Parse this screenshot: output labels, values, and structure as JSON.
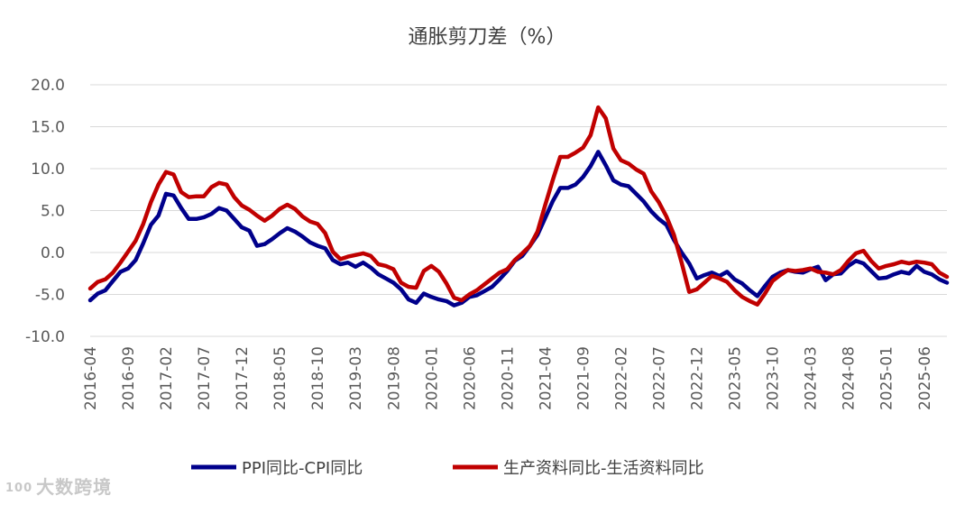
{
  "chart_data": {
    "type": "line",
    "title": "通胀剪刀差（%）",
    "xlabel": "",
    "ylabel": "",
    "ylim": [
      -10,
      20
    ],
    "yticks": [
      20,
      15,
      10,
      5,
      0,
      -5,
      -10
    ],
    "ytick_labels": [
      "20.0",
      "15.0",
      "10.0",
      "5.0",
      "0.0",
      "-5.0",
      "-10.0"
    ],
    "grid": true,
    "legend_position": "bottom",
    "start": "2016-04",
    "end": "2025-06",
    "xtick_labels": [
      "2016-04",
      "2016-09",
      "2017-02",
      "2017-07",
      "2017-12",
      "2018-05",
      "2018-10",
      "2019-03",
      "2019-08",
      "2020-01",
      "2020-06",
      "2020-11",
      "2021-04",
      "2021-09",
      "2022-02",
      "2022-07",
      "2022-12",
      "2023-05",
      "2023-10",
      "2024-03",
      "2024-08",
      "2025-01",
      "2025-06"
    ],
    "series": [
      {
        "name": "PPI同比-CPI同比",
        "color": "#00008B",
        "values": [
          -5.7,
          -4.9,
          -4.5,
          -3.4,
          -2.3,
          -1.9,
          -0.9,
          1.1,
          3.3,
          4.4,
          7.0,
          6.8,
          5.3,
          4.0,
          4.0,
          4.2,
          4.6,
          5.3,
          5.0,
          4.0,
          3.0,
          2.6,
          0.8,
          1.0,
          1.6,
          2.3,
          2.9,
          2.5,
          1.9,
          1.2,
          0.8,
          0.5,
          -0.9,
          -1.4,
          -1.2,
          -1.7,
          -1.2,
          -1.8,
          -2.6,
          -3.1,
          -3.6,
          -4.4,
          -5.6,
          -6.0,
          -4.9,
          -5.3,
          -5.6,
          -5.8,
          -6.3,
          -6.0,
          -5.3,
          -5.1,
          -4.6,
          -4.1,
          -3.2,
          -2.2,
          -1.0,
          -0.4,
          0.8,
          2.1,
          4.1,
          6.1,
          7.7,
          7.7,
          8.1,
          9.0,
          10.3,
          12.0,
          10.4,
          8.6,
          8.1,
          7.9,
          7.0,
          6.1,
          4.9,
          4.0,
          3.3,
          1.5,
          0.0,
          -1.3,
          -3.1,
          -2.7,
          -2.4,
          -2.8,
          -2.3,
          -3.2,
          -3.7,
          -4.5,
          -5.2,
          -4.0,
          -2.9,
          -2.4,
          -2.1,
          -2.3,
          -2.4,
          -2.0,
          -1.7,
          -3.3,
          -2.6,
          -2.5,
          -1.6,
          -1.0,
          -1.3,
          -2.2,
          -3.1,
          -3.0,
          -2.6,
          -2.3,
          -2.5,
          -1.6,
          -2.3,
          -2.6,
          -3.2,
          -3.6
        ]
      },
      {
        "name": "生产资料同比-生活资料同比",
        "color": "#C00000",
        "values": [
          -4.3,
          -3.5,
          -3.2,
          -2.4,
          -1.2,
          0.1,
          1.4,
          3.4,
          6.0,
          8.1,
          9.6,
          9.3,
          7.2,
          6.6,
          6.7,
          6.7,
          7.8,
          8.3,
          8.1,
          6.6,
          5.6,
          5.1,
          4.4,
          3.8,
          4.4,
          5.2,
          5.7,
          5.2,
          4.3,
          3.7,
          3.4,
          2.3,
          0.1,
          -0.8,
          -0.5,
          -0.3,
          -0.1,
          -0.4,
          -1.4,
          -1.6,
          -2.0,
          -3.6,
          -4.1,
          -4.2,
          -2.2,
          -1.6,
          -2.3,
          -3.7,
          -5.4,
          -5.7,
          -5.0,
          -4.5,
          -3.8,
          -3.1,
          -2.4,
          -2.0,
          -0.9,
          -0.1,
          0.8,
          2.5,
          5.6,
          8.6,
          11.4,
          11.4,
          11.9,
          12.5,
          14.0,
          17.3,
          16.0,
          12.4,
          11.0,
          10.6,
          9.9,
          9.4,
          7.3,
          6.0,
          4.3,
          2.1,
          -1.2,
          -4.7,
          -4.4,
          -3.6,
          -2.8,
          -3.1,
          -3.5,
          -4.5,
          -5.3,
          -5.8,
          -6.2,
          -4.9,
          -3.4,
          -2.7,
          -2.1,
          -2.2,
          -2.1,
          -1.9,
          -2.3,
          -2.4,
          -2.6,
          -2.1,
          -1.0,
          -0.1,
          0.2,
          -1.0,
          -1.9,
          -1.6,
          -1.4,
          -1.1,
          -1.3,
          -1.1,
          -1.2,
          -1.4,
          -2.4,
          -2.9
        ]
      }
    ]
  },
  "watermark": {
    "logo_text": "100",
    "text": "大数跨境"
  }
}
